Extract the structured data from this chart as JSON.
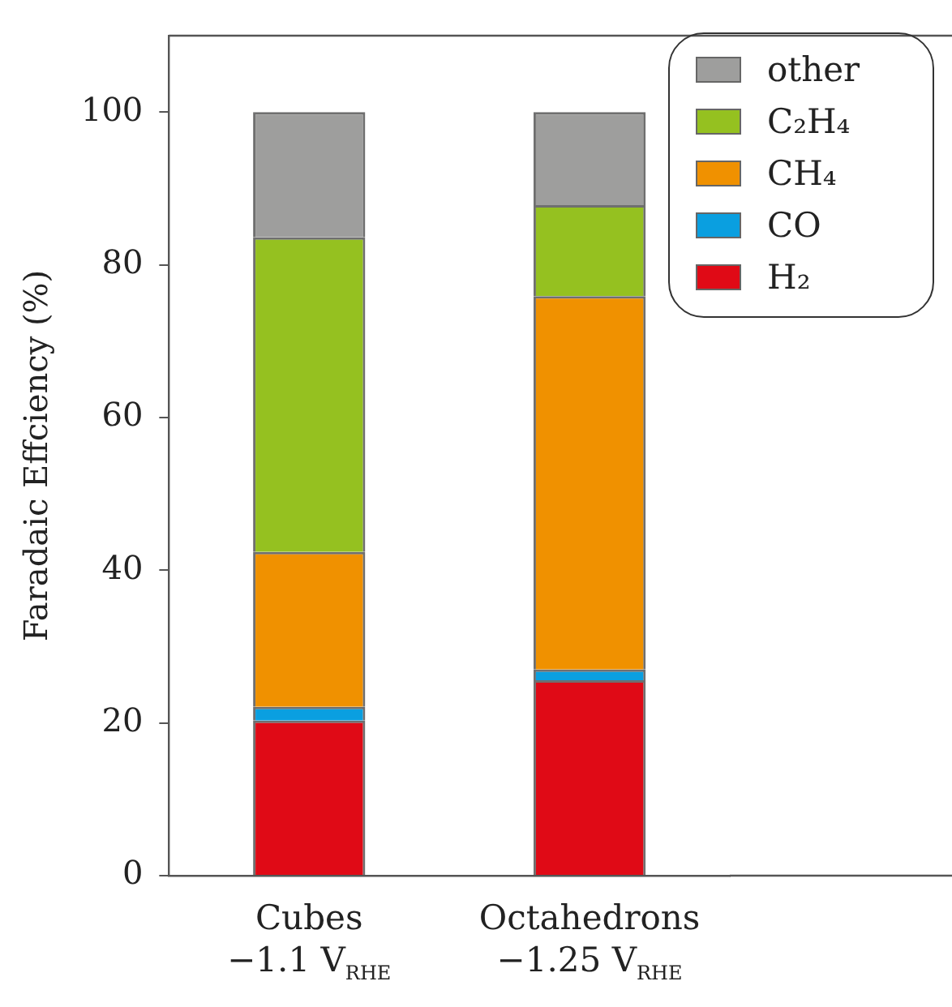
{
  "chart_data": {
    "type": "bar",
    "stacked": true,
    "ylabel": "Faradaic Effciency (%)",
    "categories": [
      "Cubes\n−1.1 V$_{RHE}$",
      "Octahedrons\n−1.25 V$_{RHE}$"
    ],
    "series": [
      {
        "name": "H₂",
        "color": "#e00a16",
        "values": [
          20.3,
          25.6
        ]
      },
      {
        "name": "CO",
        "color": "#0a9fe0",
        "values": [
          1.8,
          1.4
        ]
      },
      {
        "name": "CH₄",
        "color": "#f09100",
        "values": [
          20.3,
          48.9
        ]
      },
      {
        "name": "C₂H₄",
        "color": "#95c120",
        "values": [
          41.2,
          11.9
        ]
      },
      {
        "name": "other",
        "color": "#9e9e9d",
        "values": [
          16.4,
          12.2
        ]
      }
    ],
    "ylim": [
      0,
      110
    ],
    "yticks": [
      0,
      20,
      40,
      60,
      80,
      100
    ],
    "grid": false,
    "legend": "top right"
  }
}
